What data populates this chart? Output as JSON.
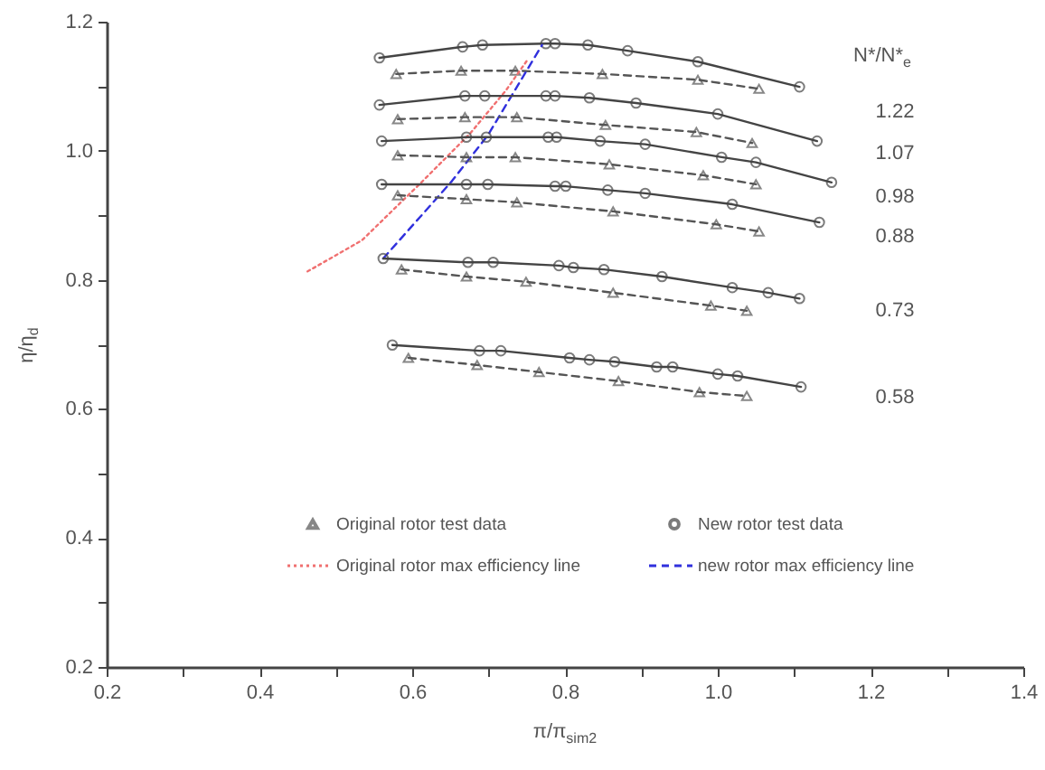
{
  "chart_data": {
    "type": "line",
    "xlabel": "π/π$_{sim2}$",
    "ylabel": "η/η$_{d}$",
    "xlim": [
      0.2,
      1.4
    ],
    "ylim": [
      0.2,
      1.2
    ],
    "xticks": [
      0.2,
      {
        "value": 0.3,
        "label": null
      },
      0.4,
      {
        "value": 0.5,
        "label": null
      },
      0.6,
      {
        "value": 0.7,
        "label": null
      },
      0.8,
      {
        "value": 0.9,
        "label": null
      },
      {
        "value": 1,
        "label": "1.0"
      },
      {
        "value": 1.1,
        "label": null
      },
      1.2,
      {
        "value": 1.3,
        "label": null
      },
      1.4
    ],
    "yticks": [
      0.2,
      {
        "value": 0.3,
        "label": null
      },
      0.4,
      {
        "value": 0.5,
        "label": null
      },
      0.6,
      {
        "value": 0.7,
        "label": null
      },
      0.8,
      {
        "value": 0.9,
        "label": null
      },
      {
        "value": 1,
        "label": "1.0"
      },
      {
        "value": 1.1,
        "label": null
      },
      1.2
    ],
    "grid": false,
    "legend": "bottom",
    "series": [
      {
        "name": "Original rotor test data",
        "color": "#555555",
        "marker": "triangle",
        "line_style": "dashed",
        "x": [
          0.579,
          0.664,
          0.735,
          0.849,
          0.974,
          1.054
        ],
        "values": [
          1.119,
          1.124,
          1.124,
          1.119,
          1.11,
          1.096
        ]
      },
      {
        "name": "New rotor test data",
        "color": "#444444",
        "marker": "circle",
        "line_style": "solid",
        "x": [
          0.557,
          0.666,
          0.692,
          0.775,
          0.787,
          0.83,
          0.882,
          0.974,
          1.107
        ],
        "values": [
          1.144,
          1.161,
          1.164,
          1.166,
          1.166,
          1.164,
          1.155,
          1.138,
          1.099
        ]
      },
      {
        "name": "Original rotor max efficiency line",
        "color": "#f07070",
        "marker": "none",
        "line_style": "dotted",
        "x": [
          0.463,
          0.534,
          0.612,
          0.676,
          0.723,
          0.751
        ],
        "values": [
          0.813,
          0.861,
          0.951,
          1.027,
          1.094,
          1.141
        ]
      },
      {
        "name": "new rotor max efficiency line",
        "color": "#3030dd",
        "marker": "none",
        "line_style": "dashed",
        "x": [
          0.562,
          0.652,
          0.699,
          0.73,
          0.77
        ],
        "values": [
          0.833,
          0.953,
          1.024,
          1.085,
          1.164
        ]
      },
      {
        "color": "#444444",
        "marker": "circle",
        "line_style": "solid",
        "x": [
          0.557,
          0.669,
          0.695,
          0.775,
          0.787,
          0.832,
          0.893,
          1.0,
          1.13
        ],
        "values": [
          1.071,
          1.085,
          1.085,
          1.085,
          1.085,
          1.082,
          1.074,
          1.057,
          1.015
        ]
      },
      {
        "color": "#555555",
        "marker": "triangle",
        "line_style": "dashed",
        "x": [
          0.581,
          0.669,
          0.737,
          0.853,
          0.972,
          1.045
        ],
        "values": [
          1.049,
          1.052,
          1.052,
          1.04,
          1.029,
          1.012
        ]
      },
      {
        "color": "#444444",
        "marker": "circle",
        "line_style": "solid",
        "x": [
          0.56,
          0.671,
          0.697,
          0.778,
          0.789,
          0.846,
          0.905,
          1.005,
          1.05,
          1.149
        ],
        "values": [
          1.015,
          1.021,
          1.021,
          1.021,
          1.021,
          1.015,
          1.01,
          0.99,
          0.982,
          0.951
        ]
      },
      {
        "color": "#555555",
        "marker": "triangle",
        "line_style": "dashed",
        "x": [
          0.581,
          0.671,
          0.735,
          0.858,
          0.981,
          1.05
        ],
        "values": [
          0.993,
          0.99,
          0.99,
          0.979,
          0.962,
          0.948
        ]
      },
      {
        "color": "#444444",
        "marker": "circle",
        "line_style": "solid",
        "x": [
          0.56,
          0.671,
          0.699,
          0.787,
          0.801,
          0.856,
          0.905,
          1.019,
          1.133
        ],
        "values": [
          0.948,
          0.948,
          0.948,
          0.945,
          0.945,
          0.939,
          0.934,
          0.917,
          0.889
        ]
      },
      {
        "color": "#555555",
        "marker": "triangle",
        "line_style": "dashed",
        "x": [
          0.581,
          0.671,
          0.737,
          0.863,
          0.998,
          1.054
        ],
        "values": [
          0.931,
          0.925,
          0.92,
          0.906,
          0.886,
          0.875
        ]
      },
      {
        "color": "#444444",
        "marker": "circle",
        "line_style": "solid",
        "x": [
          0.562,
          0.673,
          0.706,
          0.792,
          0.811,
          0.851,
          0.927,
          1.019,
          1.066,
          1.107
        ],
        "values": [
          0.833,
          0.827,
          0.827,
          0.822,
          0.819,
          0.816,
          0.805,
          0.788,
          0.78,
          0.771
        ]
      },
      {
        "color": "#555555",
        "marker": "triangle",
        "line_style": "dashed",
        "x": [
          0.586,
          0.671,
          0.749,
          0.863,
          0.991,
          1.038
        ],
        "values": [
          0.816,
          0.805,
          0.797,
          0.78,
          0.76,
          0.752
        ]
      },
      {
        "color": "#444444",
        "marker": "circle",
        "line_style": "solid",
        "x": [
          0.574,
          0.688,
          0.716,
          0.806,
          0.832,
          0.865,
          0.92,
          0.941,
          1.0,
          1.026,
          1.109
        ],
        "values": [
          0.699,
          0.69,
          0.69,
          0.679,
          0.676,
          0.673,
          0.665,
          0.665,
          0.654,
          0.651,
          0.634
        ]
      },
      {
        "color": "#555555",
        "marker": "triangle",
        "line_style": "dashed",
        "x": [
          0.595,
          0.685,
          0.766,
          0.87,
          0.976,
          1.038
        ],
        "values": [
          0.679,
          0.668,
          0.657,
          0.643,
          0.626,
          0.62
        ]
      }
    ],
    "annotations": [
      "N*/N*$_{e}$",
      "1.22",
      "1.07",
      "0.98",
      "0.88",
      "0.73",
      "0.58"
    ]
  }
}
